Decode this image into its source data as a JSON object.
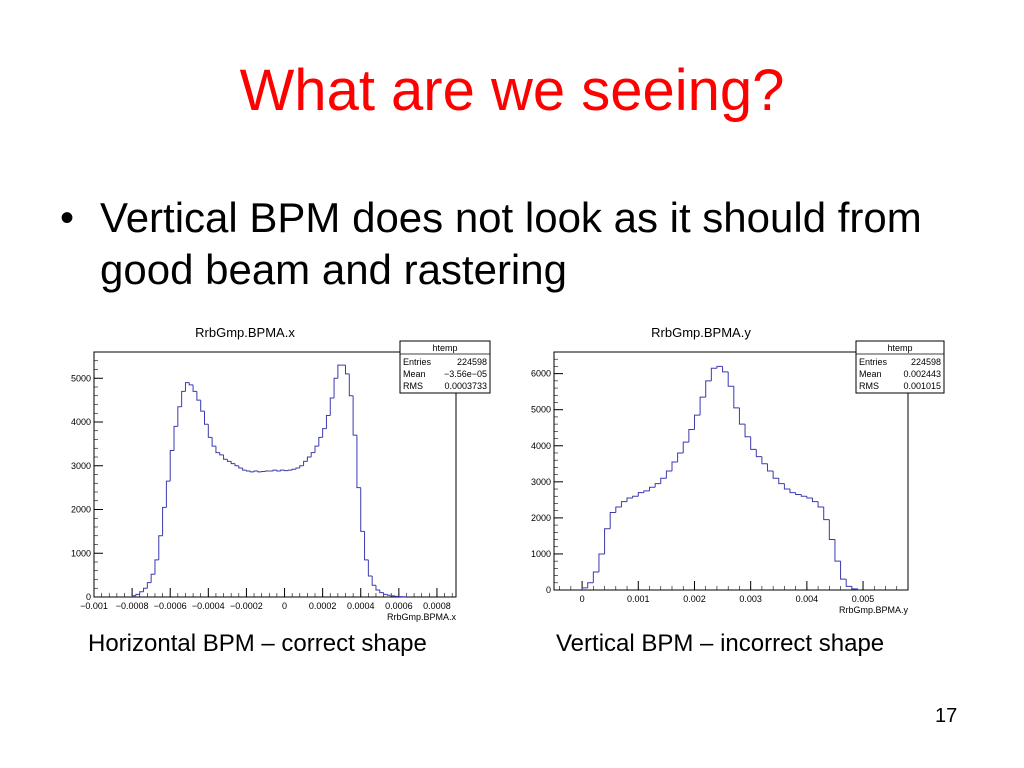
{
  "slide": {
    "title": "What are we seeing?",
    "bullet": "Vertical BPM does not look as it should from good beam and rastering",
    "caption_left": "Horizontal BPM – correct shape",
    "caption_right": "Vertical BPM – incorrect shape",
    "page_number": "17"
  },
  "colors": {
    "title": "#ff0000",
    "histogram_line": "#3a3ab0",
    "frame": "#000000"
  },
  "chart_data": [
    {
      "type": "histogram",
      "title": "RrbGmp.BPMA.x",
      "xlabel": "RrbGmp.BPMA.x",
      "ylabel": "",
      "xlim": [
        -0.001,
        0.0009
      ],
      "ylim": [
        0,
        5600
      ],
      "xticks": [
        -0.001,
        -0.0008,
        -0.0006,
        -0.0004,
        -0.0002,
        0,
        0.0002,
        0.0004,
        0.0006,
        0.0008
      ],
      "xtick_labels": [
        "−0.001",
        "−0.0008",
        "−0.0006",
        "−0.0004",
        "−0.0002",
        "0",
        "0.0002",
        "0.0004",
        "0.0006",
        "0.0008"
      ],
      "yticks": [
        0,
        1000,
        2000,
        3000,
        4000,
        5000
      ],
      "ytick_labels": [
        "0",
        "1000",
        "2000",
        "3000",
        "4000",
        "5000"
      ],
      "stats": {
        "name": "htemp",
        "rows": [
          {
            "label": "Entries",
            "value": "224598"
          },
          {
            "label": "Mean",
            "value": "−3.56e−05"
          },
          {
            "label": "RMS",
            "value": "0.0003733"
          }
        ]
      },
      "x": [
        -0.0008,
        -0.00078,
        -0.00076,
        -0.00074,
        -0.00072,
        -0.0007,
        -0.00068,
        -0.00066,
        -0.00064,
        -0.00062,
        -0.0006,
        -0.00058,
        -0.00056,
        -0.00054,
        -0.00052,
        -0.0005,
        -0.00048,
        -0.00046,
        -0.00044,
        -0.00042,
        -0.0004,
        -0.00038,
        -0.00036,
        -0.00034,
        -0.00032,
        -0.0003,
        -0.00028,
        -0.00026,
        -0.00024,
        -0.00022,
        -0.0002,
        -0.00018,
        -0.00016,
        -0.00014,
        -0.00012,
        -0.0001,
        -8e-05,
        -6e-05,
        -4e-05,
        -2e-05,
        0.0,
        2e-05,
        4e-05,
        6e-05,
        8e-05,
        0.0001,
        0.00012,
        0.00014,
        0.00016,
        0.00018,
        0.0002,
        0.00022,
        0.00024,
        0.00026,
        0.00028,
        0.0003,
        0.00032,
        0.00034,
        0.00036,
        0.00038,
        0.0004,
        0.00042,
        0.00044,
        0.00046,
        0.00048,
        0.0005,
        0.00052,
        0.00054,
        0.00056,
        0.00058,
        0.0006,
        0.00062
      ],
      "values": [
        30,
        60,
        120,
        200,
        330,
        520,
        850,
        1400,
        2050,
        2650,
        3350,
        3900,
        4350,
        4700,
        4900,
        4850,
        4700,
        4500,
        4250,
        3950,
        3650,
        3450,
        3300,
        3250,
        3150,
        3100,
        3050,
        3000,
        2950,
        2900,
        2880,
        2860,
        2880,
        2860,
        2870,
        2880,
        2880,
        2900,
        2880,
        2900,
        2890,
        2900,
        2920,
        2950,
        3000,
        3100,
        3200,
        3300,
        3450,
        3650,
        3850,
        4150,
        4550,
        5000,
        5300,
        5300,
        5100,
        4600,
        3700,
        2500,
        1500,
        850,
        480,
        270,
        160,
        100,
        60,
        40,
        25,
        15,
        10,
        5
      ]
    },
    {
      "type": "histogram",
      "title": "RrbGmp.BPMA.y",
      "xlabel": "RrbGmp.BPMA.y",
      "ylabel": "",
      "xlim": [
        -0.0005,
        0.0058
      ],
      "ylim": [
        0,
        6600
      ],
      "xticks": [
        0,
        0.001,
        0.002,
        0.003,
        0.004,
        0.005
      ],
      "xtick_labels": [
        "0",
        "0.001",
        "0.002",
        "0.003",
        "0.004",
        "0.005"
      ],
      "yticks": [
        0,
        1000,
        2000,
        3000,
        4000,
        5000,
        6000
      ],
      "ytick_labels": [
        "0",
        "1000",
        "2000",
        "3000",
        "4000",
        "5000",
        "6000"
      ],
      "stats": {
        "name": "htemp",
        "rows": [
          {
            "label": "Entries",
            "value": "224598"
          },
          {
            "label": "Mean",
            "value": "0.002443"
          },
          {
            "label": "RMS",
            "value": "0.001015"
          }
        ]
      },
      "x": [
        0.0,
        0.0001,
        0.0002,
        0.0003,
        0.0004,
        0.0005,
        0.0006,
        0.0007,
        0.0008,
        0.0009,
        0.001,
        0.0011,
        0.0012,
        0.0013,
        0.0014,
        0.0015,
        0.0016,
        0.0017,
        0.0018,
        0.0019,
        0.002,
        0.0021,
        0.0022,
        0.0023,
        0.0024,
        0.0025,
        0.0026,
        0.0027,
        0.0028,
        0.0029,
        0.003,
        0.0031,
        0.0032,
        0.0033,
        0.0034,
        0.0035,
        0.0036,
        0.0037,
        0.0038,
        0.0039,
        0.004,
        0.0041,
        0.0042,
        0.0043,
        0.0044,
        0.0045,
        0.0046,
        0.0047,
        0.0048
      ],
      "values": [
        60,
        200,
        500,
        1000,
        1700,
        2150,
        2300,
        2450,
        2550,
        2600,
        2700,
        2750,
        2850,
        2950,
        3100,
        3300,
        3550,
        3800,
        4100,
        4450,
        4850,
        5350,
        5800,
        6150,
        6200,
        6050,
        5650,
        5050,
        4600,
        4250,
        3900,
        3700,
        3500,
        3300,
        3100,
        2950,
        2800,
        2700,
        2650,
        2600,
        2550,
        2450,
        2300,
        1950,
        1400,
        800,
        300,
        100,
        30
      ]
    }
  ]
}
